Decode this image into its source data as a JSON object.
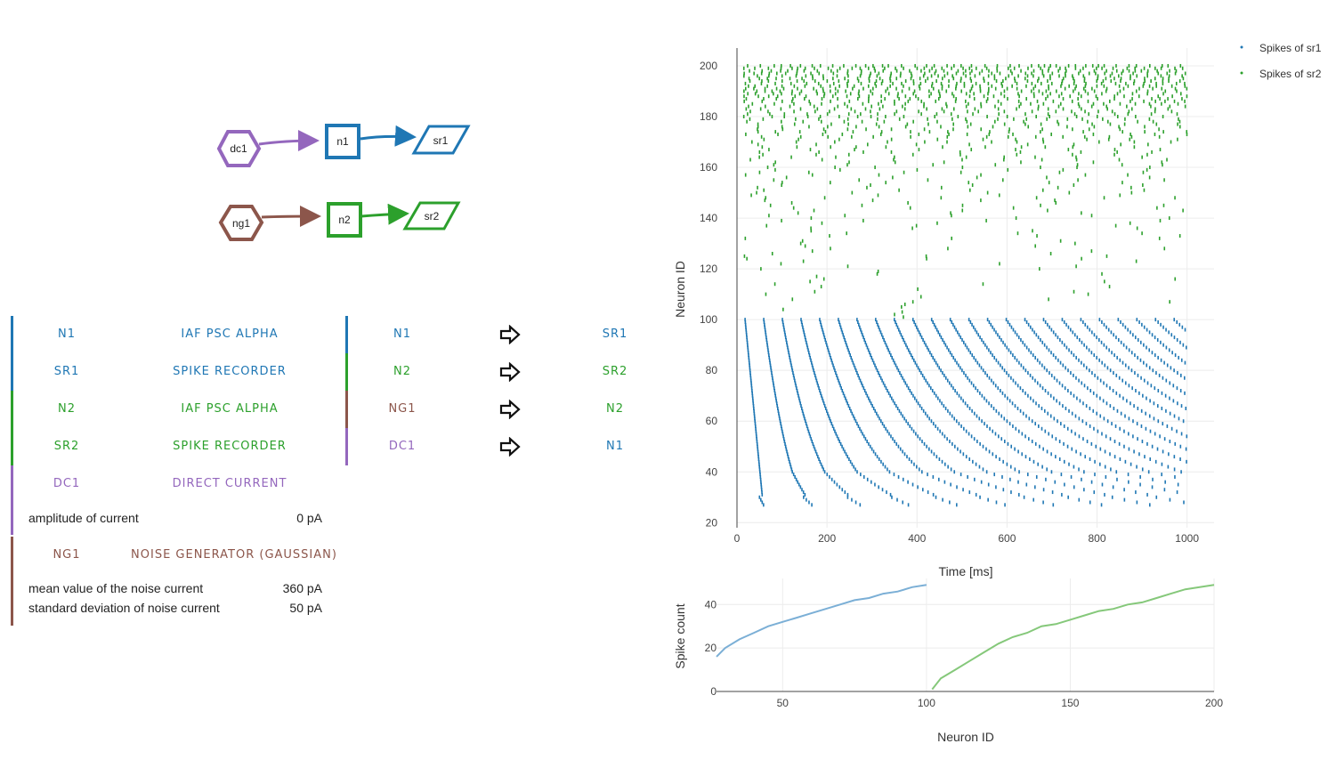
{
  "graph": {
    "nodes": [
      {
        "id": "dc1",
        "kind": "hexagon",
        "color": "#9467bd"
      },
      {
        "id": "n1",
        "kind": "square",
        "color": "#1f77b4"
      },
      {
        "id": "sr1",
        "kind": "parallelogram",
        "color": "#1f77b4"
      },
      {
        "id": "ng1",
        "kind": "hexagon",
        "color": "#8c564b"
      },
      {
        "id": "n2",
        "kind": "square",
        "color": "#2ca02c"
      },
      {
        "id": "sr2",
        "kind": "parallelogram",
        "color": "#2ca02c"
      }
    ],
    "edges": [
      {
        "from": "dc1",
        "to": "n1",
        "color": "#9467bd"
      },
      {
        "from": "n1",
        "to": "sr1",
        "color": "#1f77b4"
      },
      {
        "from": "ng1",
        "to": "n2",
        "color": "#8c564b"
      },
      {
        "from": "n2",
        "to": "sr2",
        "color": "#2ca02c"
      }
    ]
  },
  "nodes_table": [
    {
      "name": "N1",
      "model": "IAF PSC ALPHA",
      "color": "#1f77b4",
      "params": []
    },
    {
      "name": "SR1",
      "model": "SPIKE RECORDER",
      "color": "#1f77b4",
      "params": []
    },
    {
      "name": "N2",
      "model": "IAF PSC ALPHA",
      "color": "#2ca02c",
      "params": []
    },
    {
      "name": "SR2",
      "model": "SPIKE RECORDER",
      "color": "#2ca02c",
      "params": []
    },
    {
      "name": "DC1",
      "model": "DIRECT CURRENT",
      "color": "#9467bd",
      "params": [
        {
          "label": "amplitude of current",
          "value": "0 pA"
        }
      ]
    },
    {
      "name": "NG1",
      "model": "NOISE GENERATOR (GAUSSIAN)",
      "color": "#8c564b",
      "params": [
        {
          "label": "mean value of the noise current",
          "value": "360 pA"
        },
        {
          "label": "standard deviation of noise current",
          "value": "50 pA"
        }
      ]
    }
  ],
  "connections_table": [
    {
      "source": "N1",
      "target": "SR1",
      "source_color": "#1f77b4",
      "target_color": "#1f77b4"
    },
    {
      "source": "N2",
      "target": "SR2",
      "source_color": "#2ca02c",
      "target_color": "#2ca02c"
    },
    {
      "source": "NG1",
      "target": "N2",
      "source_color": "#8c564b",
      "target_color": "#2ca02c"
    },
    {
      "source": "DC1",
      "target": "N1",
      "source_color": "#9467bd",
      "target_color": "#1f77b4"
    }
  ],
  "chart_data": [
    {
      "type": "scatter",
      "title": "",
      "xlabel": "Time [ms]",
      "ylabel": "Neuron ID",
      "xlim": [
        0,
        1060
      ],
      "ylim": [
        18,
        207
      ],
      "xticks": [
        0,
        200,
        400,
        600,
        800,
        1000
      ],
      "yticks": [
        20,
        40,
        60,
        80,
        100,
        120,
        140,
        160,
        180,
        200
      ],
      "grid": true,
      "legend_position": "top-right",
      "series": [
        {
          "name": "Spikes of sr1",
          "color": "#1f77b4",
          "neuron_range": [
            27,
            100
          ],
          "time_range": [
            18,
            1000
          ],
          "first_spike_ms": {
            "neuron_27": 61,
            "neuron_40": 41,
            "neuron_60": 28,
            "neuron_100": 19
          }
        },
        {
          "name": "Spikes of sr2",
          "color": "#2ca02c",
          "neuron_range": [
            101,
            200
          ],
          "time_range": [
            15,
            1000
          ]
        }
      ]
    },
    {
      "type": "line",
      "title": "",
      "xlabel": "Neuron ID",
      "ylabel": "Spike count",
      "xlim": [
        27,
        200
      ],
      "ylim": [
        0,
        52
      ],
      "xticks": [
        50,
        100,
        150,
        200
      ],
      "yticks": [
        0,
        20,
        40
      ],
      "grid": true,
      "series": [
        {
          "name": "",
          "color": "#7bafd6",
          "x": [
            27,
            30,
            35,
            40,
            45,
            50,
            55,
            60,
            65,
            70,
            75,
            80,
            85,
            90,
            95,
            100
          ],
          "y": [
            16,
            20,
            24,
            27,
            30,
            32,
            34,
            36,
            38,
            40,
            42,
            43,
            45,
            46,
            48,
            49
          ]
        },
        {
          "name": "",
          "color": "#85c87a",
          "x": [
            102,
            105,
            110,
            115,
            120,
            125,
            130,
            135,
            140,
            145,
            150,
            155,
            160,
            165,
            170,
            175,
            180,
            185,
            190,
            195,
            200
          ],
          "y": [
            1,
            6,
            10,
            14,
            18,
            22,
            25,
            27,
            30,
            31,
            33,
            35,
            37,
            38,
            40,
            41,
            43,
            45,
            47,
            48,
            49
          ]
        }
      ]
    }
  ]
}
